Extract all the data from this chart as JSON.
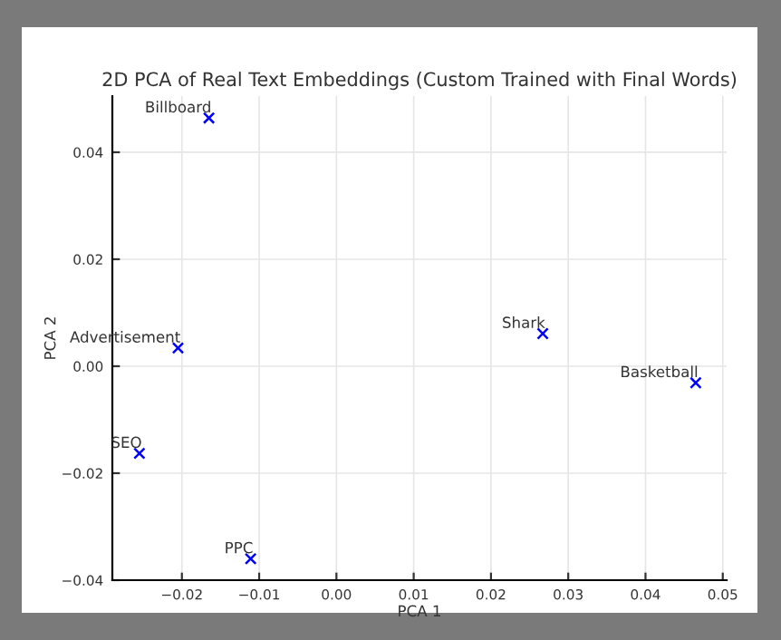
{
  "chart_data": {
    "type": "scatter",
    "title": "2D PCA of Real Text Embeddings (Custom Trained with Final Words)",
    "xlabel": "PCA 1",
    "ylabel": "PCA 2",
    "series": [
      {
        "color": "#0000ff",
        "x": [
          -0.0165,
          -0.0205,
          -0.0255,
          -0.0111,
          0.0267,
          0.0465
        ],
        "values": [
          0.0464,
          0.0034,
          -0.0163,
          -0.036,
          0.0061,
          -0.0031
        ]
      }
    ],
    "annotations": [
      {
        "text": "Billboard",
        "x": -0.0165,
        "y": 0.0464
      },
      {
        "text": "Advertisement",
        "x": -0.0205,
        "y": 0.0034
      },
      {
        "text": "SEO",
        "x": -0.0255,
        "y": -0.0163
      },
      {
        "text": "PPC",
        "x": -0.0111,
        "y": -0.036
      },
      {
        "text": "Shark",
        "x": 0.0267,
        "y": 0.0061
      },
      {
        "text": "Basketball",
        "x": 0.0465,
        "y": -0.0031
      }
    ],
    "xlim": [
      -0.029,
      0.0505
    ],
    "ylim": [
      -0.04,
      0.0505
    ],
    "xticks": [
      {
        "value": -0.02,
        "label": "−0.02"
      },
      {
        "value": -0.01,
        "label": "−0.01"
      },
      {
        "value": 0.0,
        "label": "0.00"
      },
      {
        "value": 0.01,
        "label": "0.01"
      },
      {
        "value": 0.02,
        "label": "0.02"
      },
      {
        "value": 0.03,
        "label": "0.03"
      },
      {
        "value": 0.04,
        "label": "0.04"
      },
      {
        "value": 0.05,
        "label": "0.05"
      }
    ],
    "yticks": [
      {
        "value": -0.04,
        "label": "−0.04"
      },
      {
        "value": -0.02,
        "label": "−0.02"
      },
      {
        "value": 0.0,
        "label": "0.00"
      },
      {
        "value": 0.02,
        "label": "0.02"
      },
      {
        "value": 0.04,
        "label": "0.04"
      }
    ],
    "grid": true,
    "marker": "cross"
  }
}
